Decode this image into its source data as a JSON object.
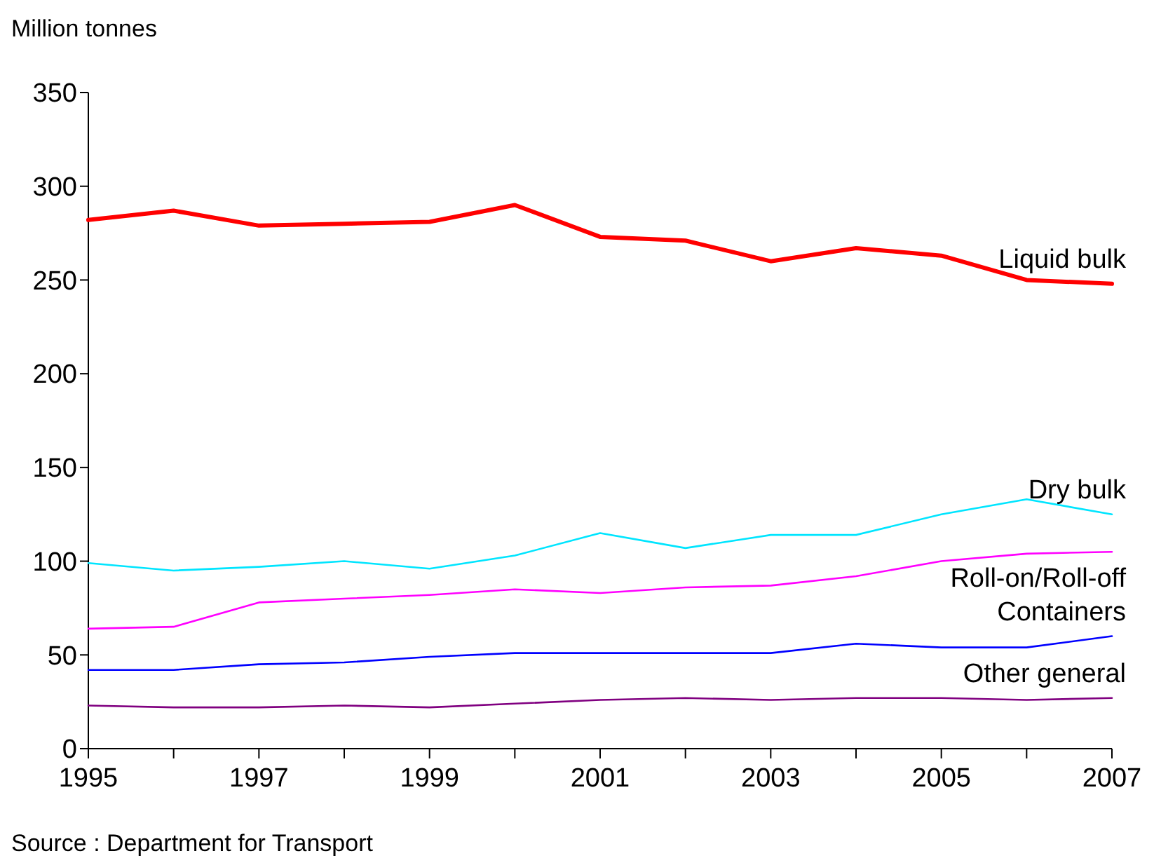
{
  "chart_data": {
    "type": "line",
    "ylabel": "Million tonnes",
    "annotations": [
      "Source : Department for Transport"
    ],
    "x": [
      1995,
      1996,
      1997,
      1998,
      1999,
      2000,
      2001,
      2002,
      2003,
      2004,
      2005,
      2006,
      2007
    ],
    "xlim": [
      1995,
      2007
    ],
    "xticks": [
      1995,
      {
        "value": 1996,
        "label": null
      },
      1997,
      {
        "value": 1998,
        "label": null
      },
      1999,
      {
        "value": 2000,
        "label": null
      },
      2001,
      {
        "value": 2002,
        "label": null
      },
      2003,
      {
        "value": 2004,
        "label": null
      },
      2005,
      {
        "value": 2006,
        "label": null
      },
      2007
    ],
    "ylim": [
      0,
      350
    ],
    "yticks": [
      0,
      50,
      100,
      150,
      200,
      250,
      300,
      350
    ],
    "grid": false,
    "marker": "none",
    "line_style": "solid",
    "series": [
      {
        "name": "Liquid bulk",
        "color": "#ff0000",
        "values": [
          282,
          287,
          279,
          280,
          281,
          290,
          273,
          271,
          260,
          267,
          263,
          250,
          248
        ]
      },
      {
        "name": "Dry bulk",
        "color": "#00e5ff",
        "values": [
          99,
          95,
          97,
          100,
          96,
          103,
          115,
          107,
          114,
          114,
          125,
          133,
          125
        ]
      },
      {
        "name": "Roll-on/Roll-off",
        "color": "#ff00ff",
        "values": [
          64,
          65,
          78,
          80,
          82,
          85,
          83,
          86,
          87,
          92,
          100,
          104,
          105
        ]
      },
      {
        "name": "Containers",
        "color": "#0000ff",
        "values": [
          42,
          42,
          45,
          46,
          49,
          51,
          51,
          51,
          51,
          56,
          54,
          54,
          60
        ]
      },
      {
        "name": "Other general",
        "color": "#800080",
        "values": [
          23,
          22,
          22,
          23,
          22,
          24,
          26,
          27,
          26,
          27,
          27,
          26,
          27
        ]
      }
    ]
  }
}
